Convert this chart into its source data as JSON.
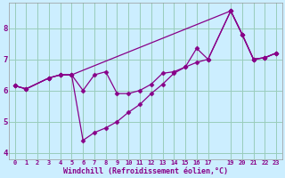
{
  "xlabel": "Windchill (Refroidissement éolien,°C)",
  "bg_color": "#cceeff",
  "line_color": "#880088",
  "grid_color": "#99ccbb",
  "xlim": [
    -0.5,
    23.5
  ],
  "ylim": [
    3.8,
    8.8
  ],
  "xticks": [
    0,
    1,
    2,
    3,
    4,
    5,
    6,
    7,
    8,
    9,
    10,
    11,
    12,
    13,
    14,
    15,
    16,
    17,
    19,
    20,
    21,
    22,
    23
  ],
  "yticks": [
    4,
    5,
    6,
    7,
    8
  ],
  "line1_x": [
    0,
    1,
    3,
    4,
    5,
    19,
    20,
    21,
    22,
    23
  ],
  "line1_y": [
    6.15,
    6.05,
    6.4,
    6.5,
    6.5,
    8.55,
    7.8,
    7.0,
    7.05,
    7.2
  ],
  "line2_x": [
    0,
    1,
    3,
    4,
    5,
    6,
    7,
    8,
    9,
    10,
    11,
    12,
    13,
    14,
    15,
    16,
    17,
    19,
    20,
    21,
    22,
    23
  ],
  "line2_y": [
    6.15,
    6.05,
    6.4,
    6.5,
    6.5,
    6.0,
    6.5,
    6.6,
    5.9,
    5.9,
    6.0,
    6.2,
    6.55,
    6.6,
    6.75,
    6.9,
    7.0,
    8.55,
    7.8,
    7.0,
    7.05,
    7.2
  ],
  "line3_x": [
    0,
    1,
    3,
    4,
    5,
    6,
    7,
    8,
    9,
    10,
    11,
    12,
    13,
    14,
    15,
    16,
    17,
    19,
    20,
    21,
    22,
    23
  ],
  "line3_y": [
    6.15,
    6.05,
    6.4,
    6.5,
    6.5,
    4.4,
    4.65,
    4.8,
    5.0,
    5.3,
    5.55,
    5.9,
    6.2,
    6.55,
    6.75,
    7.35,
    7.0,
    8.55,
    7.8,
    7.0,
    7.05,
    7.2
  ]
}
